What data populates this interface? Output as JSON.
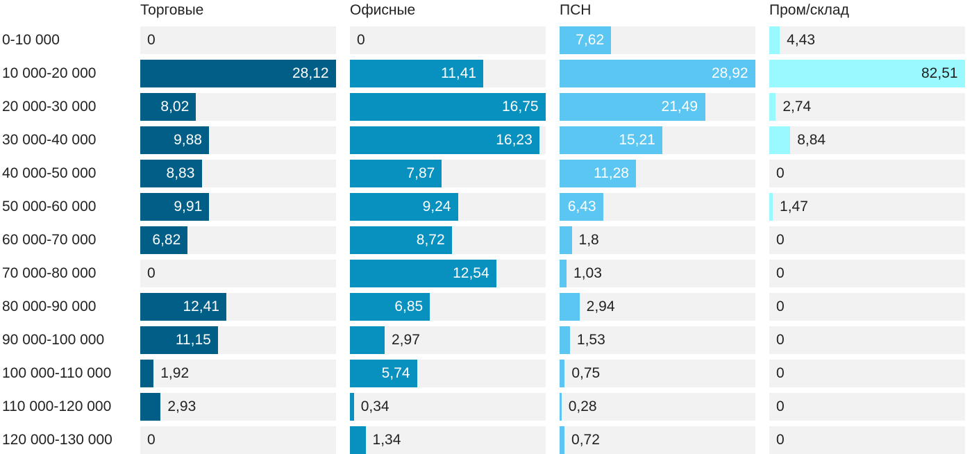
{
  "chart_data": {
    "type": "bar",
    "orientation": "horizontal",
    "categories": [
      "0-10 000",
      "10 000-20 000",
      "20 000-30 000",
      "30 000-40 000",
      "40 000-50 000",
      "50 000-60 000",
      "60 000-70 000",
      "70 000-80 000",
      "80 000-90 000",
      "90 000-100 000",
      "100 000-110 000",
      "110 000-120 000",
      "120 000-130 000"
    ],
    "series": [
      {
        "name": "Торговые",
        "color": "#005e87",
        "max": 28.12,
        "values": [
          0,
          28.12,
          8.02,
          9.88,
          8.83,
          9.91,
          6.82,
          0,
          12.41,
          11.15,
          1.92,
          2.93,
          0
        ],
        "labels": [
          "0",
          "28,12",
          "8,02",
          "9,88",
          "8,83",
          "9,91",
          "6,82",
          "0",
          "12,41",
          "11,15",
          "1,92",
          "2,93",
          "0"
        ]
      },
      {
        "name": "Офисные",
        "color": "#0891bf",
        "max": 16.75,
        "values": [
          0,
          11.41,
          16.75,
          16.23,
          7.87,
          9.24,
          8.72,
          12.54,
          6.85,
          2.97,
          5.74,
          0.34,
          1.34
        ],
        "labels": [
          "0",
          "11,41",
          "16,75",
          "16,23",
          "7,87",
          "9,24",
          "8,72",
          "12,54",
          "6,85",
          "2,97",
          "5,74",
          "0,34",
          "1,34"
        ]
      },
      {
        "name": "ПСН",
        "color": "#5bc6f2",
        "max": 28.92,
        "values": [
          7.62,
          28.92,
          21.49,
          15.21,
          11.28,
          6.43,
          1.8,
          1.03,
          2.94,
          1.53,
          0.75,
          0.28,
          0.72
        ],
        "labels": [
          "7,62",
          "28,92",
          "21,49",
          "15,21",
          "11,28",
          "6,43",
          "1,8",
          "1,03",
          "2,94",
          "1,53",
          "0,75",
          "0,28",
          "0,72"
        ]
      },
      {
        "name": "Пром/склад",
        "color": "#99f9fe",
        "max": 82.51,
        "values": [
          4.43,
          82.51,
          2.74,
          8.84,
          0,
          1.47,
          0,
          0,
          0,
          0,
          0,
          0,
          0
        ],
        "labels": [
          "4,43",
          "82,51",
          "2,74",
          "8,84",
          "0",
          "1,47",
          "0",
          "0",
          "0",
          "0",
          "0",
          "0",
          "0"
        ]
      }
    ],
    "title": "",
    "xlabel": "",
    "ylabel": "",
    "grid": false,
    "legend": "none"
  }
}
